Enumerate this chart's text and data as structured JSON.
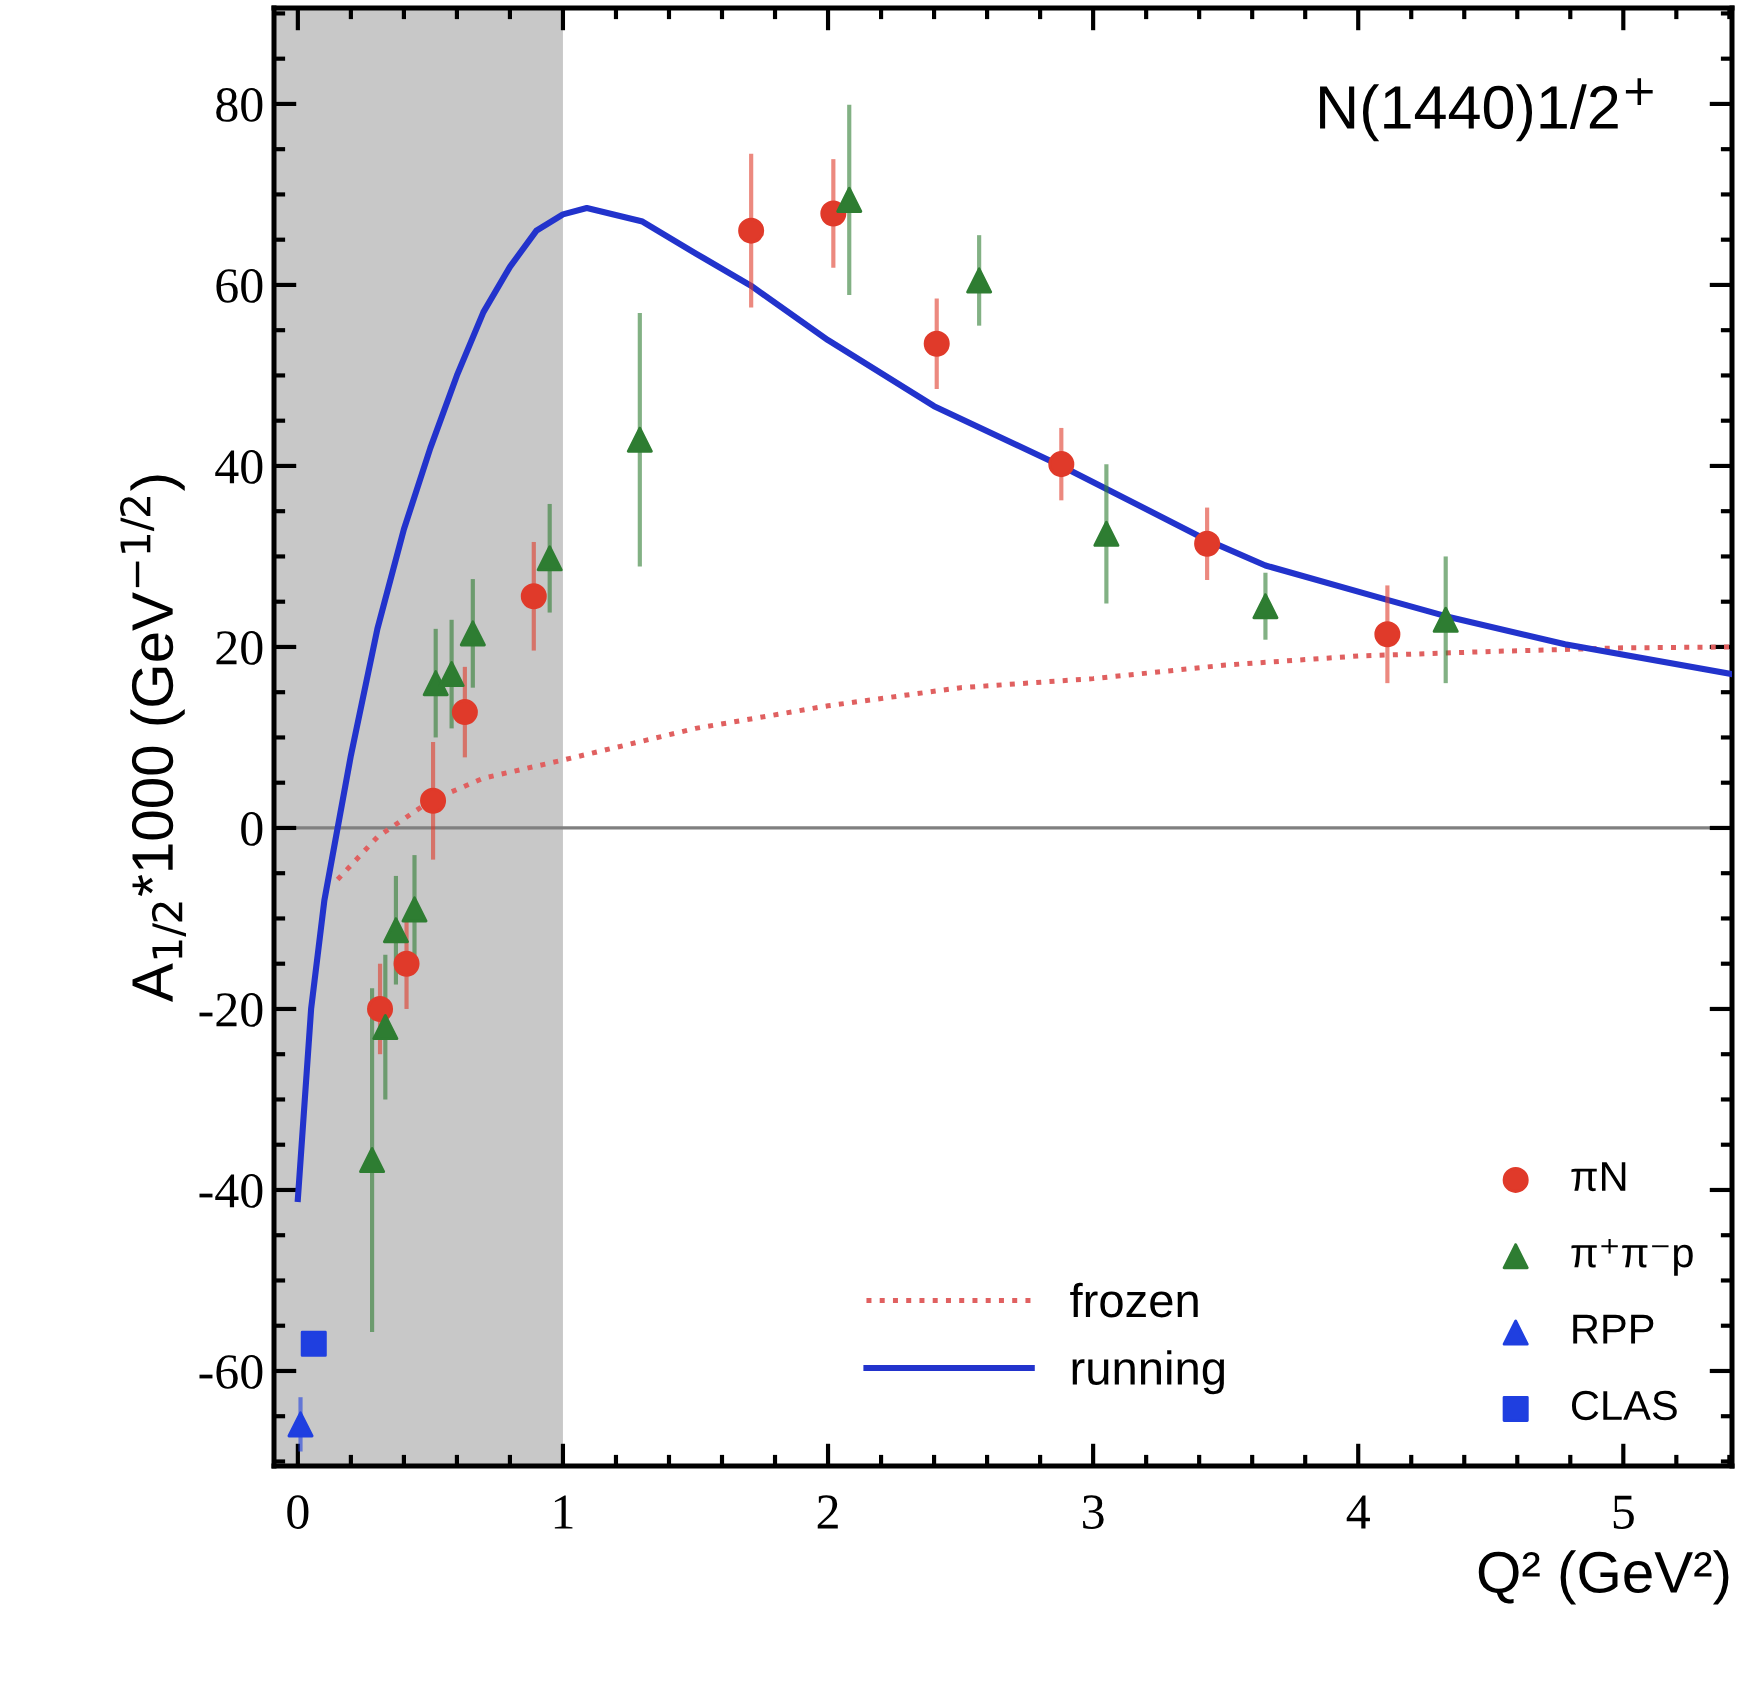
{
  "chart_data": {
    "type": "scatter",
    "xlabel": "Q² (GeV²)",
    "ylabel": "A$_{1/2}$*1000 (GeV$^{−1/2}$)",
    "annotations": [
      "N(1440)1/2$^{+}$"
    ],
    "xlim": [
      -0.09,
      5.41
    ],
    "ylim": [
      -70.5,
      90.6
    ],
    "xticks": [
      0,
      1,
      2,
      3,
      4,
      5
    ],
    "yticks": [
      -60,
      -40,
      -20,
      0,
      20,
      40,
      60,
      80
    ],
    "grid": false,
    "legend": "bottom right",
    "ref_lines": [
      {
        "axis": "y",
        "value": 0,
        "color": "#808080"
      }
    ],
    "bands": [
      {
        "axis": "x",
        "from": -0.09,
        "to": 1,
        "color": "#c8c8c8"
      }
    ],
    "series": [
      {
        "name": "frozen",
        "type": "line",
        "color": "#e06060",
        "line_style": "dotted",
        "marker": "none",
        "x": [
          0.15,
          0.3,
          0.5,
          0.7,
          1.0,
          1.5,
          2.0,
          2.5,
          3.0,
          3.5,
          4.0,
          4.5,
          5.0,
          5.41
        ],
        "values": [
          -5.7,
          -1,
          3,
          5.5,
          7.5,
          11,
          13.5,
          15.5,
          16.5,
          18,
          19,
          19.5,
          19.9,
          20
        ]
      },
      {
        "name": "running",
        "type": "line",
        "color": "#2233cc",
        "line_style": "solid",
        "marker": "none",
        "x": [
          0,
          0.05,
          0.1,
          0.2,
          0.3,
          0.4,
          0.5,
          0.6,
          0.7,
          0.8,
          0.9,
          1.0,
          1.09,
          1.3,
          1.5,
          1.71,
          2.0,
          2.4,
          2.88,
          3.43,
          3.65,
          4.11,
          4.33,
          4.78,
          5.41
        ],
        "values": [
          -41,
          -20,
          -8,
          8,
          22,
          33,
          42,
          50,
          57,
          62,
          66,
          67.8,
          68.5,
          67,
          63.5,
          59.9,
          53.9,
          46.6,
          40,
          31.8,
          29,
          25.2,
          23.4,
          20.3,
          17
        ]
      },
      {
        "name": "πN",
        "color": "#e03a2a",
        "marker": "circle",
        "x": [
          0.31,
          0.41,
          0.51,
          0.63,
          0.89,
          1.71,
          2.02,
          2.41,
          2.88,
          3.43,
          4.11
        ],
        "values": [
          -20,
          -15,
          3,
          12.8,
          25.6,
          66,
          67.9,
          53.5,
          40.2,
          31.4,
          21.4
        ],
        "errors": [
          5,
          5,
          6.5,
          5,
          6,
          8.5,
          6,
          5,
          4,
          4,
          5.4
        ]
      },
      {
        "name": "π⁺π⁻p",
        "color": "#2e7d32",
        "marker": "triangle",
        "x": [
          0.28,
          0.33,
          0.37,
          0.44,
          0.52,
          0.58,
          0.66,
          0.95,
          1.29,
          2.08,
          2.57,
          3.05,
          3.65,
          4.33
        ],
        "values": [
          -36.7,
          -22,
          -11.3,
          -9,
          16,
          17,
          21.5,
          29.8,
          42.9,
          69.4,
          60.5,
          32.5,
          24.5,
          23
        ],
        "errors": [
          19,
          8,
          6,
          6,
          6,
          6,
          6,
          6,
          14,
          10.5,
          5,
          7.7,
          3.7,
          7
        ]
      },
      {
        "name": "RPP",
        "color": "#1f3fe0",
        "marker": "triangle",
        "x": [
          0.01
        ],
        "values": [
          -65.9
        ],
        "errors": [
          3
        ]
      },
      {
        "name": "CLAS",
        "color": "#1f3fe0",
        "marker": "square",
        "x": [
          0.06
        ],
        "values": [
          -57
        ],
        "errors": [
          null
        ]
      }
    ]
  }
}
